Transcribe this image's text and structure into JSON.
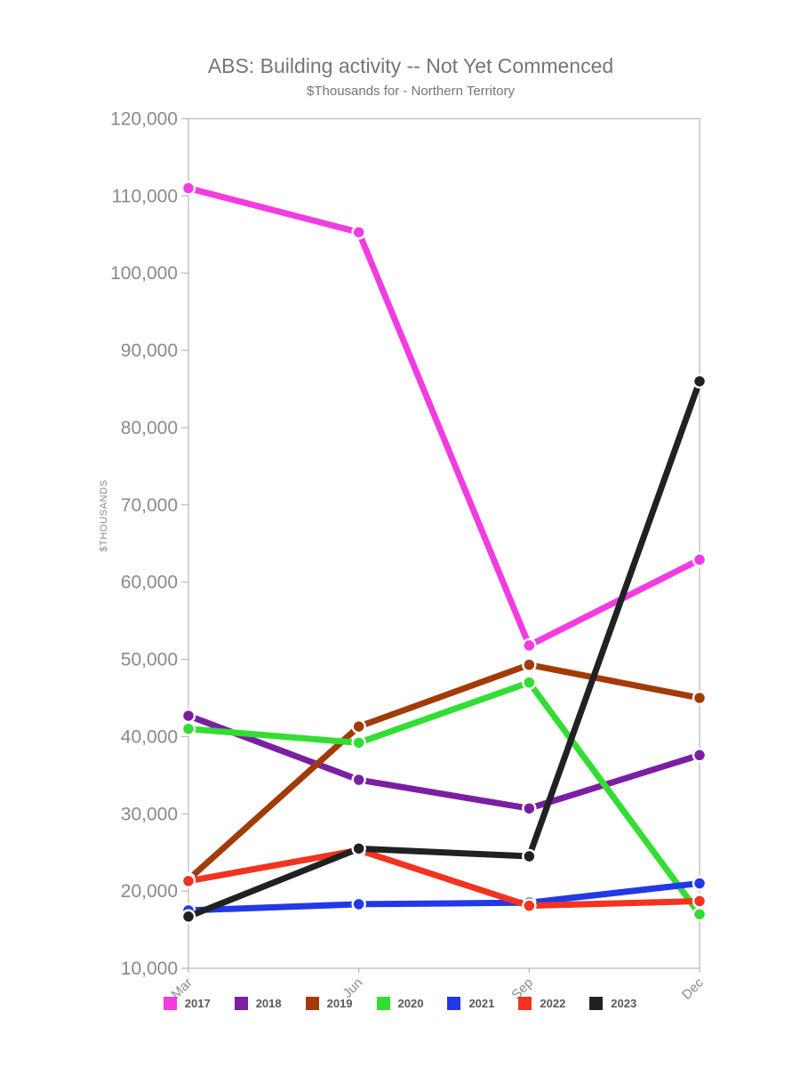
{
  "chart_data": {
    "type": "line",
    "title": "ABS: Building activity -- Not Yet Commenced",
    "subtitle": "$Thousands for - Northern Territory",
    "ylabel": "$THOUSANDS",
    "categories": [
      "Mar",
      "Jun",
      "Sep",
      "Dec"
    ],
    "ylim": [
      10000,
      120000
    ],
    "ytick_step": 10000,
    "grid": false,
    "legend_position": "bottom",
    "series": [
      {
        "name": "2017",
        "color": "#F23BE2",
        "values": [
          111000,
          105300,
          51800,
          62900
        ]
      },
      {
        "name": "2018",
        "color": "#7B1FA2",
        "values": [
          42700,
          34400,
          30700,
          37600
        ]
      },
      {
        "name": "2019",
        "color": "#A23B08",
        "values": [
          21500,
          41300,
          49300,
          45000
        ]
      },
      {
        "name": "2020",
        "color": "#33DD33",
        "values": [
          41000,
          39200,
          47000,
          17000
        ]
      },
      {
        "name": "2021",
        "color": "#2139E6",
        "values": [
          17500,
          18300,
          18500,
          21000
        ]
      },
      {
        "name": "2022",
        "color": "#F2331F",
        "values": [
          21300,
          25300,
          18100,
          18700
        ]
      },
      {
        "name": "2023",
        "color": "#212121",
        "values": [
          16700,
          25500,
          24500,
          86000
        ]
      }
    ]
  },
  "colors": {
    "background": "#FFFFFF",
    "axis_line": "#B8B8B8",
    "tick_label": "#8A8A8A",
    "title_text": "#757575",
    "legend_text": "#595959",
    "marker_ring": "#FFFFFF"
  }
}
